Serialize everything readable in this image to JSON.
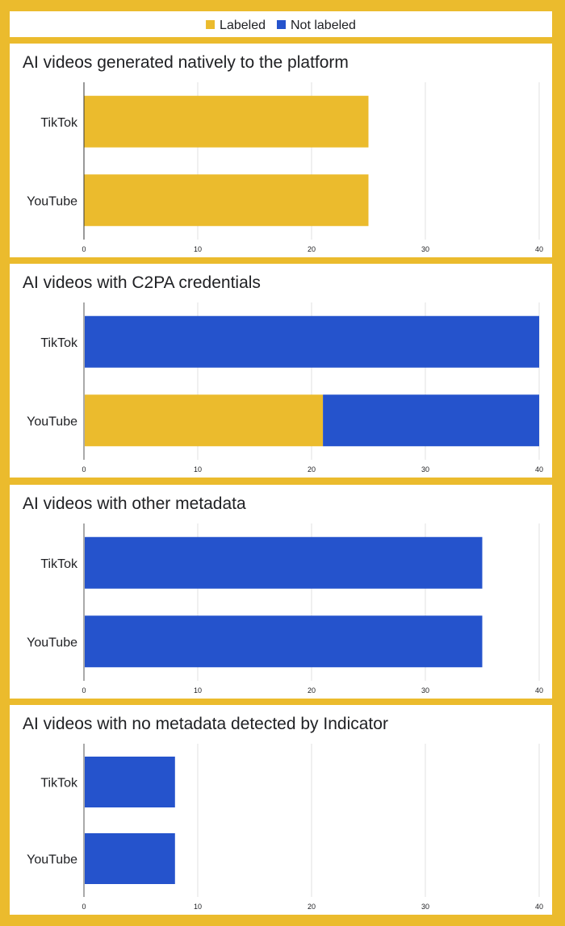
{
  "legend": [
    {
      "label": "Labeled",
      "color": "#EBBB2D"
    },
    {
      "label": "Not labeled",
      "color": "#2553CC"
    }
  ],
  "colors": {
    "labeled": "#EBBB2D",
    "not_labeled": "#2553CC",
    "gridline": "#E0E0E0",
    "axis": "#444444"
  },
  "chart_data": [
    {
      "type": "bar",
      "orientation": "horizontal",
      "stacked": true,
      "title": "AI videos generated natively to the platform",
      "categories": [
        "TikTok",
        "YouTube"
      ],
      "series": [
        {
          "name": "Labeled",
          "values": [
            25,
            25
          ]
        },
        {
          "name": "Not labeled",
          "values": [
            0,
            0
          ]
        }
      ],
      "xlim": [
        0,
        40
      ],
      "xticks": [
        "0",
        "10",
        "20",
        "30",
        "40"
      ],
      "grid": true,
      "legend": "top"
    },
    {
      "type": "bar",
      "orientation": "horizontal",
      "stacked": true,
      "title": "AI videos with C2PA credentials",
      "categories": [
        "TikTok",
        "YouTube"
      ],
      "series": [
        {
          "name": "Labeled",
          "values": [
            0,
            21
          ]
        },
        {
          "name": "Not labeled",
          "values": [
            40,
            19
          ]
        }
      ],
      "xlim": [
        0,
        40
      ],
      "xticks": [
        "0",
        "10",
        "20",
        "30",
        "40"
      ],
      "grid": true,
      "legend": "top"
    },
    {
      "type": "bar",
      "orientation": "horizontal",
      "stacked": true,
      "title": "AI videos with other metadata",
      "categories": [
        "TikTok",
        "YouTube"
      ],
      "series": [
        {
          "name": "Labeled",
          "values": [
            0,
            0
          ]
        },
        {
          "name": "Not labeled",
          "values": [
            35,
            35
          ]
        }
      ],
      "xlim": [
        0,
        40
      ],
      "xticks": [
        "0",
        "10",
        "20",
        "30",
        "40"
      ],
      "grid": true,
      "legend": "top"
    },
    {
      "type": "bar",
      "orientation": "horizontal",
      "stacked": true,
      "title": "AI videos with no metadata detected by Indicator",
      "categories": [
        "TikTok",
        "YouTube"
      ],
      "series": [
        {
          "name": "Labeled",
          "values": [
            0,
            0
          ]
        },
        {
          "name": "Not labeled",
          "values": [
            8,
            8
          ]
        }
      ],
      "xlim": [
        0,
        40
      ],
      "xticks": [
        "0",
        "10",
        "20",
        "30",
        "40"
      ],
      "grid": true,
      "legend": "top"
    }
  ]
}
